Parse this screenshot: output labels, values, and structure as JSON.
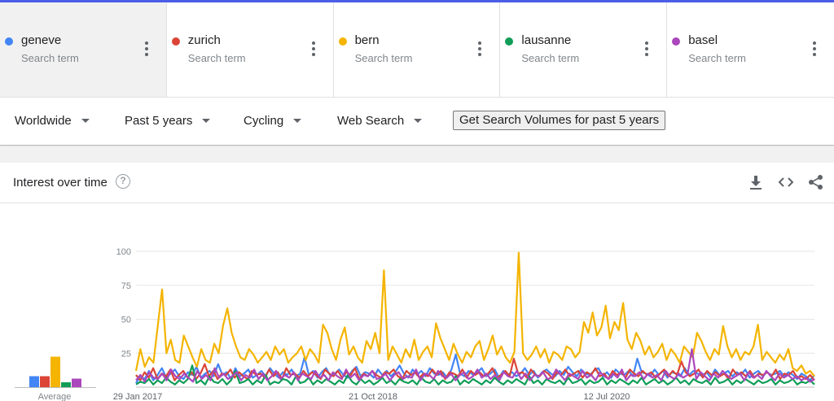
{
  "terms": [
    {
      "name": "geneve",
      "sub": "Search term",
      "color": "#4285f4"
    },
    {
      "name": "zurich",
      "sub": "Search term",
      "color": "#db4437"
    },
    {
      "name": "bern",
      "sub": "Search term",
      "color": "#f4b400"
    },
    {
      "name": "lausanne",
      "sub": "Search term",
      "color": "#0f9d58"
    },
    {
      "name": "basel",
      "sub": "Search term",
      "color": "#ab47bc"
    }
  ],
  "filters": {
    "region": "Worldwide",
    "period": "Past 5 years",
    "category": "Cycling",
    "search_type": "Web Search",
    "volume_button": "Get Search Volumes for past 5 years"
  },
  "card": {
    "title": "Interest over time",
    "help": "?",
    "icons": [
      "download-icon",
      "embed-icon",
      "share-icon"
    ]
  },
  "chart_data": {
    "type": "line",
    "x_labels": [
      "29 Jan 2017",
      "21 Oct 2018",
      "12 Jul 2020"
    ],
    "yticks": [
      25,
      50,
      75,
      100
    ],
    "ylim": [
      0,
      100
    ],
    "grid": true,
    "average_label": "Average",
    "averages": [
      {
        "name": "geneve",
        "value": 9
      },
      {
        "name": "zurich",
        "value": 9
      },
      {
        "name": "bern",
        "value": 25
      },
      {
        "name": "lausanne",
        "value": 4
      },
      {
        "name": "basel",
        "value": 7
      }
    ],
    "series": [
      {
        "name": "geneve",
        "color": "#4285f4",
        "values": [
          3,
          8,
          6,
          12,
          5,
          9,
          14,
          7,
          10,
          13,
          8,
          6,
          11,
          9,
          15,
          7,
          10,
          12,
          8,
          17,
          9,
          11,
          6,
          14,
          8,
          10,
          13,
          7,
          9,
          12,
          8,
          14,
          10,
          7,
          11,
          9,
          13,
          8,
          10,
          22,
          9,
          12,
          7,
          11,
          14,
          8,
          10,
          13,
          9,
          7,
          12,
          15,
          8,
          11,
          10,
          7,
          13,
          9,
          12,
          8,
          11,
          16,
          10,
          7,
          13,
          9,
          12,
          8,
          14,
          10,
          9,
          11,
          7,
          13,
          24,
          10,
          8,
          12,
          9,
          11,
          14,
          8,
          10,
          13,
          7,
          12,
          9,
          11,
          8,
          10,
          14,
          9,
          12,
          7,
          11,
          13,
          10,
          8,
          12,
          9,
          15,
          11,
          8,
          13,
          10,
          9,
          12,
          14,
          8,
          11,
          7,
          13,
          10,
          9,
          12,
          8,
          21,
          11,
          10,
          8,
          13,
          9,
          12,
          7,
          11,
          10,
          8,
          14,
          9,
          12,
          10,
          8,
          11,
          7,
          13,
          9,
          10,
          12,
          8,
          11,
          9,
          13,
          7,
          10,
          12,
          8,
          11,
          9,
          10,
          12,
          8,
          11,
          9,
          6,
          10,
          8,
          5,
          9
        ]
      },
      {
        "name": "zurich",
        "color": "#db4437",
        "values": [
          9,
          5,
          11,
          7,
          14,
          6,
          10,
          8,
          13,
          5,
          9,
          12,
          7,
          11,
          6,
          10,
          17,
          8,
          12,
          6,
          10,
          9,
          13,
          7,
          11,
          8,
          6,
          12,
          9,
          10,
          7,
          13,
          8,
          11,
          6,
          14,
          9,
          10,
          7,
          12,
          8,
          11,
          9,
          6,
          13,
          10,
          8,
          12,
          7,
          11,
          9,
          14,
          6,
          10,
          8,
          12,
          9,
          7,
          11,
          10,
          13,
          8,
          6,
          12,
          9,
          11,
          7,
          10,
          8,
          13,
          9,
          12,
          6,
          11,
          10,
          8,
          13,
          7,
          12,
          9,
          11,
          8,
          10,
          14,
          7,
          9,
          12,
          8,
          21,
          10,
          11,
          7,
          13,
          9,
          8,
          12,
          10,
          6,
          11,
          9,
          13,
          8,
          10,
          12,
          7,
          11,
          9,
          14,
          8,
          10,
          6,
          12,
          9,
          11,
          7,
          13,
          10,
          8,
          12,
          9,
          11,
          7,
          10,
          13,
          8,
          12,
          9,
          19,
          11,
          8,
          10,
          13,
          7,
          12,
          9,
          11,
          8,
          10,
          6,
          13,
          9,
          11,
          8,
          12,
          7,
          10,
          9,
          11,
          8,
          13,
          6,
          10,
          9,
          12,
          7,
          8,
          6,
          9,
          5
        ]
      },
      {
        "name": "bern",
        "color": "#f4b400",
        "values": [
          12,
          28,
          15,
          22,
          18,
          45,
          72,
          25,
          35,
          20,
          18,
          38,
          30,
          22,
          15,
          28,
          20,
          18,
          32,
          25,
          45,
          58,
          40,
          30,
          22,
          20,
          28,
          24,
          18,
          22,
          26,
          20,
          30,
          24,
          28,
          18,
          22,
          25,
          30,
          20,
          28,
          24,
          18,
          46,
          40,
          28,
          20,
          35,
          44,
          24,
          30,
          22,
          18,
          34,
          28,
          40,
          25,
          86,
          20,
          30,
          24,
          18,
          28,
          22,
          35,
          20,
          26,
          30,
          22,
          47,
          36,
          28,
          20,
          32,
          24,
          18,
          26,
          22,
          30,
          34,
          20,
          28,
          38,
          24,
          30,
          22,
          18,
          26,
          99,
          25,
          20,
          24,
          30,
          22,
          28,
          18,
          26,
          24,
          20,
          30,
          28,
          22,
          26,
          48,
          40,
          55,
          38,
          44,
          60,
          36,
          48,
          42,
          62,
          35,
          28,
          40,
          34,
          24,
          30,
          22,
          26,
          32,
          20,
          28,
          24,
          18,
          30,
          26,
          22,
          40,
          34,
          26,
          20,
          28,
          24,
          45,
          30,
          22,
          28,
          20,
          26,
          24,
          30,
          46,
          20,
          26,
          22,
          18,
          24,
          20,
          28,
          14,
          12,
          16,
          10,
          12,
          8
        ]
      },
      {
        "name": "lausanne",
        "color": "#0f9d58",
        "values": [
          2,
          4,
          3,
          6,
          2,
          5,
          3,
          7,
          4,
          2,
          5,
          3,
          6,
          16,
          3,
          5,
          2,
          8,
          4,
          3,
          6,
          2,
          5,
          12,
          3,
          4,
          6,
          2,
          5,
          3,
          9,
          2,
          4,
          3,
          6,
          5,
          2,
          8,
          3,
          4,
          7,
          2,
          5,
          3,
          6,
          4,
          2,
          5,
          3,
          9,
          4,
          2,
          6,
          3,
          5,
          2,
          4,
          7,
          3,
          5,
          2,
          6,
          4,
          3,
          5,
          2,
          7,
          4,
          3,
          6,
          2,
          5,
          3,
          4,
          8,
          2,
          5,
          3,
          6,
          4,
          2,
          5,
          3,
          7,
          4,
          2,
          5,
          3,
          6,
          4,
          2,
          8,
          3,
          5,
          2,
          6,
          4,
          3,
          5,
          2,
          7,
          3,
          4,
          6,
          2,
          5,
          3,
          4,
          7,
          2,
          5,
          3,
          6,
          4,
          2,
          5,
          3,
          7,
          2,
          4,
          6,
          3,
          5,
          2,
          4,
          7,
          3,
          5,
          2,
          6,
          4,
          3,
          5,
          2,
          7,
          3,
          4,
          6,
          2,
          5,
          3,
          6,
          4,
          2,
          5,
          3,
          4,
          6,
          2,
          5,
          3,
          4,
          6,
          2,
          4,
          3,
          5,
          2
        ]
      },
      {
        "name": "basel",
        "color": "#ab47bc",
        "values": [
          5,
          9,
          4,
          11,
          7,
          6,
          10,
          5,
          13,
          8,
          6,
          10,
          7,
          4,
          12,
          6,
          9,
          5,
          14,
          7,
          10,
          6,
          8,
          11,
          5,
          9,
          7,
          13,
          6,
          10,
          5,
          8,
          12,
          6,
          9,
          7,
          11,
          5,
          10,
          8,
          6,
          12,
          7,
          9,
          5,
          11,
          8,
          6,
          13,
          7,
          10,
          5,
          9,
          8,
          12,
          6,
          7,
          10,
          5,
          9,
          11,
          6,
          8,
          7,
          13,
          5,
          10,
          9,
          6,
          12,
          8,
          7,
          10,
          5,
          9,
          11,
          6,
          8,
          13,
          7,
          10,
          6,
          9,
          5,
          11,
          8,
          7,
          12,
          6,
          10,
          5,
          9,
          8,
          11,
          6,
          7,
          13,
          9,
          5,
          10,
          8,
          6,
          12,
          7,
          9,
          5,
          11,
          8,
          6,
          10,
          7,
          13,
          5,
          9,
          8,
          11,
          6,
          10,
          7,
          9,
          5,
          12,
          8,
          6,
          10,
          7,
          9,
          28,
          6,
          11,
          8,
          5,
          10,
          7,
          12,
          9,
          6,
          8,
          10,
          5,
          11,
          7,
          9,
          6,
          12,
          8,
          5,
          10,
          7,
          9,
          6,
          8,
          5,
          7,
          4,
          6
        ]
      }
    ]
  }
}
